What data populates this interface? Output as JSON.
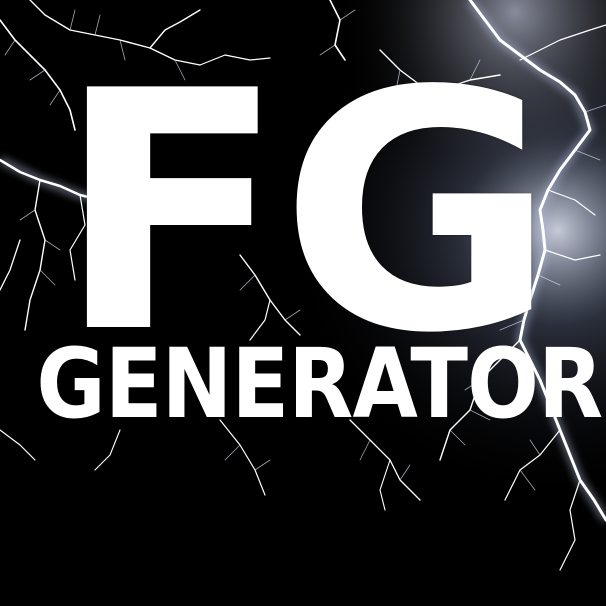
{
  "logo": {
    "initials": "FG",
    "word": "GENERATOR"
  },
  "background": {
    "description_icon": "lightning-bolts",
    "color": "#000000",
    "glow_color": "#dfe8ff"
  }
}
